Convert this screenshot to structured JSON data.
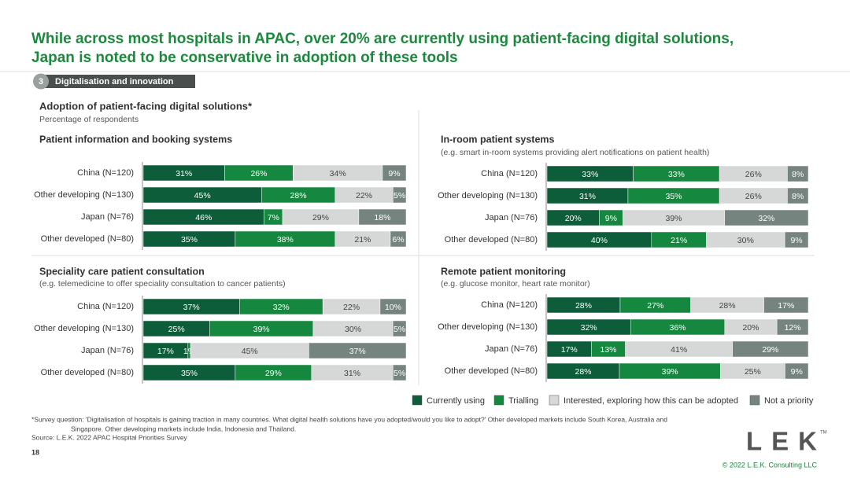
{
  "title_lines": [
    "While across most hospitals in APAC, over 20% are currently using patient-facing digital solutions,",
    "Japan is noted to be conservative in adoption of these tools"
  ],
  "section": {
    "number": "3",
    "label": "Digitalisation and innovation"
  },
  "heading": "Adoption of patient-facing digital solutions*",
  "subheading": "Percentage of respondents",
  "footnote_lines": [
    "*Survey question: 'Digitalisation of hospitals is gaining traction in many countries. What digital health solutions have you adopted/would you like to adopt?' Other developed markets include South Korea, Australia and",
    "Singapore. Other developing markets include India, Indonesia and Thailand.",
    "Source:  L.E.K. 2022 APAC Hospital Priorities Survey"
  ],
  "page_number": "18",
  "logo": "LEK",
  "logo_mark": "TM",
  "copyright": "© 2022 L.E.K. Consulting LLC",
  "chart_data": [
    {
      "type": "stacked-bar-100",
      "title": "Patient information and booking systems",
      "categories": [
        "China (N=120)",
        "Other developing (N=130)",
        "Japan (N=76)",
        "Other developed (N=80)"
      ],
      "series": [
        {
          "name": "Currently using",
          "color": "#0d5c3a",
          "values": [
            31,
            45,
            46,
            35
          ],
          "value_labels": [
            "31%",
            "45%",
            "46%",
            "35%"
          ]
        },
        {
          "name": "Trialling",
          "color": "#15873f",
          "values": [
            26,
            28,
            7,
            38
          ],
          "value_labels": [
            "26%",
            "28%",
            "7%",
            "38%"
          ]
        },
        {
          "name": "Interested, exploring how this can be adopted",
          "color": "#d6d8d7",
          "values": [
            34,
            22,
            29,
            21
          ],
          "value_labels": [
            "34%",
            "22%",
            "29%",
            "21%"
          ]
        },
        {
          "name": "Not a priority",
          "color": "#75847f",
          "values": [
            9,
            5,
            18,
            6
          ],
          "value_labels": [
            "9%",
            "5%",
            "18%",
            "6%"
          ]
        }
      ]
    },
    {
      "type": "stacked-bar-100",
      "title": "In-room patient systems",
      "subtitle": "(e.g. smart in-room systems providing alert notifications on patient health)",
      "categories": [
        "China (N=120)",
        "Other developing (N=130)",
        "Japan (N=76)",
        "Other developed (N=80)"
      ],
      "series": [
        {
          "name": "Currently using",
          "color": "#0d5c3a",
          "values": [
            33,
            31,
            20,
            40
          ],
          "value_labels": [
            "33%",
            "31%",
            "20%",
            "40%"
          ]
        },
        {
          "name": "Trialling",
          "color": "#15873f",
          "values": [
            33,
            35,
            9,
            21
          ],
          "value_labels": [
            "33%",
            "35%",
            "9%",
            "21%"
          ]
        },
        {
          "name": "Interested, exploring how this can be adopted",
          "color": "#d6d8d7",
          "values": [
            26,
            26,
            39,
            30
          ],
          "value_labels": [
            "26%",
            "26%",
            "39%",
            "30%"
          ]
        },
        {
          "name": "Not a priority",
          "color": "#75847f",
          "values": [
            8,
            8,
            32,
            9
          ],
          "value_labels": [
            "8%",
            "8%",
            "32%",
            "9%"
          ]
        }
      ]
    },
    {
      "type": "stacked-bar-100",
      "title": "Speciality care patient consultation",
      "subtitle": "(e.g. telemedicine to offer speciality consultation to cancer patients)",
      "categories": [
        "China (N=120)",
        "Other developing (N=130)",
        "Japan (N=76)",
        "Other developed (N=80)"
      ],
      "series": [
        {
          "name": "Currently using",
          "color": "#0d5c3a",
          "values": [
            37,
            25,
            17,
            35
          ],
          "value_labels": [
            "37%",
            "25%",
            "17%",
            "35%"
          ]
        },
        {
          "name": "Trialling",
          "color": "#15873f",
          "values": [
            32,
            39,
            1,
            29
          ],
          "value_labels": [
            "32%",
            "39%",
            "1%",
            "29%"
          ]
        },
        {
          "name": "Interested, exploring how this can be adopted",
          "color": "#d6d8d7",
          "values": [
            22,
            30,
            45,
            31
          ],
          "value_labels": [
            "22%",
            "30%",
            "45%",
            "31%"
          ]
        },
        {
          "name": "Not a priority",
          "color": "#75847f",
          "values": [
            10,
            5,
            37,
            5
          ],
          "value_labels": [
            "10%",
            "5%",
            "37%",
            "5%"
          ]
        }
      ]
    },
    {
      "type": "stacked-bar-100",
      "title": "Remote patient monitoring",
      "subtitle": "(e.g. glucose monitor, heart rate monitor)",
      "categories": [
        "China (N=120)",
        "Other developing (N=130)",
        "Japan (N=76)",
        "Other developed (N=80)"
      ],
      "series": [
        {
          "name": "Currently using",
          "color": "#0d5c3a",
          "values": [
            28,
            32,
            17,
            28
          ],
          "value_labels": [
            "28%",
            "32%",
            "17%",
            "28%"
          ]
        },
        {
          "name": "Trialling",
          "color": "#15873f",
          "values": [
            27,
            36,
            13,
            39
          ],
          "value_labels": [
            "27%",
            "36%",
            "13%",
            "39%"
          ]
        },
        {
          "name": "Interested, exploring how this can be adopted",
          "color": "#d6d8d7",
          "values": [
            28,
            20,
            41,
            25
          ],
          "value_labels": [
            "28%",
            "20%",
            "41%",
            "25%"
          ]
        },
        {
          "name": "Not a priority",
          "color": "#75847f",
          "values": [
            17,
            12,
            29,
            9
          ],
          "value_labels": [
            "17%",
            "12%",
            "29%",
            "9%"
          ]
        }
      ]
    }
  ]
}
